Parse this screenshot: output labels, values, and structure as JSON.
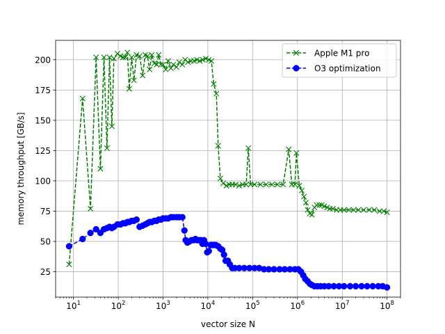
{
  "chart_data": {
    "type": "line",
    "xscale": "log",
    "xlim": [
      4,
      200000000
    ],
    "ylim": [
      4,
      216
    ],
    "grid": true,
    "legend_position": "top-right",
    "xlabel": "vector size N",
    "ylabel": "memory throughput [GB/s]",
    "x_ticks": [
      {
        "value": 10,
        "base": "10",
        "exp": "1"
      },
      {
        "value": 100,
        "base": "10",
        "exp": "2"
      },
      {
        "value": 1000,
        "base": "10",
        "exp": "3"
      },
      {
        "value": 10000,
        "base": "10",
        "exp": "4"
      },
      {
        "value": 100000,
        "base": "10",
        "exp": "5"
      },
      {
        "value": 1000000,
        "base": "10",
        "exp": "6"
      },
      {
        "value": 10000000,
        "base": "10",
        "exp": "7"
      },
      {
        "value": 100000000,
        "base": "10",
        "exp": "8"
      }
    ],
    "y_ticks": [
      {
        "value": 25,
        "label": "25"
      },
      {
        "value": 50,
        "label": "50"
      },
      {
        "value": 75,
        "label": "75"
      },
      {
        "value": 100,
        "label": "100"
      },
      {
        "value": 125,
        "label": "125"
      },
      {
        "value": 150,
        "label": "150"
      },
      {
        "value": 175,
        "label": "175"
      },
      {
        "value": 200,
        "label": "200"
      }
    ],
    "series": [
      {
        "name": "Apple M1 pro",
        "color": "#008000",
        "marker": "x",
        "line_style": "dashed",
        "points": [
          [
            8,
            31
          ],
          [
            16,
            168
          ],
          [
            24,
            77
          ],
          [
            32,
            202
          ],
          [
            40,
            110
          ],
          [
            48,
            202
          ],
          [
            56,
            127
          ],
          [
            64,
            202
          ],
          [
            72,
            145
          ],
          [
            80,
            201
          ],
          [
            96,
            205
          ],
          [
            112,
            203
          ],
          [
            128,
            202
          ],
          [
            144,
            202
          ],
          [
            160,
            206
          ],
          [
            176,
            176
          ],
          [
            200,
            202
          ],
          [
            224,
            183
          ],
          [
            256,
            204
          ],
          [
            300,
            203
          ],
          [
            350,
            187
          ],
          [
            400,
            204
          ],
          [
            450,
            203
          ],
          [
            500,
            192
          ],
          [
            560,
            204
          ],
          [
            640,
            197
          ],
          [
            720,
            196
          ],
          [
            800,
            204
          ],
          [
            900,
            196
          ],
          [
            1000,
            196
          ],
          [
            1150,
            192
          ],
          [
            1300,
            199
          ],
          [
            1500,
            193
          ],
          [
            1700,
            196
          ],
          [
            2000,
            194
          ],
          [
            2300,
            198
          ],
          [
            2700,
            196
          ],
          [
            3100,
            200
          ],
          [
            3600,
            198
          ],
          [
            4200,
            199
          ],
          [
            4900,
            199
          ],
          [
            5700,
            200
          ],
          [
            6600,
            199
          ],
          [
            7700,
            200
          ],
          [
            9000,
            201
          ],
          [
            10500,
            200
          ],
          [
            12000,
            199
          ],
          [
            13500,
            180
          ],
          [
            15500,
            172
          ],
          [
            17000,
            129
          ],
          [
            19000,
            102
          ],
          [
            22000,
            98
          ],
          [
            26000,
            96
          ],
          [
            30000,
            97
          ],
          [
            35000,
            97
          ],
          [
            42000,
            97
          ],
          [
            50000,
            96
          ],
          [
            60000,
            97
          ],
          [
            72000,
            97
          ],
          [
            80000,
            127
          ],
          [
            90000,
            97
          ],
          [
            110000,
            97
          ],
          [
            150000,
            97
          ],
          [
            200000,
            97
          ],
          [
            270000,
            97
          ],
          [
            360000,
            97
          ],
          [
            480000,
            97
          ],
          [
            640000,
            126
          ],
          [
            750000,
            97
          ],
          [
            880000,
            97
          ],
          [
            950000,
            123
          ],
          [
            1100000,
            96
          ],
          [
            1250000,
            92
          ],
          [
            1400000,
            87
          ],
          [
            1550000,
            82
          ],
          [
            1700000,
            76
          ],
          [
            1900000,
            73
          ],
          [
            2100000,
            72
          ],
          [
            2400000,
            78
          ],
          [
            2700000,
            80
          ],
          [
            3100000,
            80
          ],
          [
            3500000,
            80
          ],
          [
            4000000,
            79
          ],
          [
            4600000,
            78
          ],
          [
            5300000,
            77
          ],
          [
            6200000,
            77
          ],
          [
            7500000,
            76
          ],
          [
            9000000,
            76
          ],
          [
            11000000,
            76
          ],
          [
            14000000,
            76
          ],
          [
            18000000,
            76
          ],
          [
            23000000,
            76
          ],
          [
            30000000,
            76
          ],
          [
            40000000,
            76
          ],
          [
            52000000,
            76
          ],
          [
            68000000,
            75
          ],
          [
            85000000,
            75
          ],
          [
            100000000,
            74
          ]
        ]
      },
      {
        "name": "O3 optimization",
        "color": "#0000ff",
        "marker": "o",
        "line_style": "dashed",
        "points": [
          [
            8,
            46
          ],
          [
            16,
            52
          ],
          [
            24,
            57
          ],
          [
            32,
            60
          ],
          [
            40,
            57
          ],
          [
            48,
            60
          ],
          [
            56,
            61
          ],
          [
            64,
            62
          ],
          [
            72,
            61
          ],
          [
            80,
            62
          ],
          [
            96,
            64
          ],
          [
            112,
            64
          ],
          [
            128,
            65
          ],
          [
            144,
            65
          ],
          [
            160,
            66
          ],
          [
            176,
            66
          ],
          [
            200,
            67
          ],
          [
            224,
            67
          ],
          [
            256,
            68
          ],
          [
            300,
            62
          ],
          [
            350,
            63
          ],
          [
            400,
            64
          ],
          [
            450,
            65
          ],
          [
            500,
            66
          ],
          [
            560,
            66
          ],
          [
            640,
            67
          ],
          [
            720,
            67
          ],
          [
            800,
            68
          ],
          [
            900,
            68
          ],
          [
            1000,
            69
          ],
          [
            1150,
            69
          ],
          [
            1300,
            69
          ],
          [
            1500,
            70
          ],
          [
            1700,
            70
          ],
          [
            2000,
            70
          ],
          [
            2300,
            70
          ],
          [
            2700,
            70
          ],
          [
            3000,
            59
          ],
          [
            3200,
            51
          ],
          [
            3500,
            49
          ],
          [
            3900,
            50
          ],
          [
            4300,
            51
          ],
          [
            4800,
            51
          ],
          [
            5300,
            52
          ],
          [
            5800,
            51
          ],
          [
            6400,
            51
          ],
          [
            7000,
            51
          ],
          [
            7600,
            48
          ],
          [
            8200,
            51
          ],
          [
            8900,
            48
          ],
          [
            9700,
            41
          ],
          [
            10500,
            42
          ],
          [
            11500,
            47
          ],
          [
            12500,
            47
          ],
          [
            13500,
            47
          ],
          [
            15000,
            47
          ],
          [
            17000,
            46
          ],
          [
            19000,
            44
          ],
          [
            21000,
            43
          ],
          [
            23000,
            39
          ],
          [
            25000,
            34
          ],
          [
            28000,
            34
          ],
          [
            31000,
            31
          ],
          [
            35000,
            28
          ],
          [
            40000,
            28
          ],
          [
            50000,
            28
          ],
          [
            65000,
            28
          ],
          [
            85000,
            28
          ],
          [
            110000,
            28
          ],
          [
            140000,
            28
          ],
          [
            180000,
            27
          ],
          [
            230000,
            27
          ],
          [
            300000,
            27
          ],
          [
            400000,
            27
          ],
          [
            520000,
            27
          ],
          [
            680000,
            27
          ],
          [
            880000,
            27
          ],
          [
            1050000,
            27
          ],
          [
            1200000,
            25
          ],
          [
            1350000,
            22
          ],
          [
            1500000,
            19
          ],
          [
            1700000,
            17
          ],
          [
            1900000,
            15
          ],
          [
            2100000,
            14
          ],
          [
            2400000,
            13
          ],
          [
            2800000,
            13
          ],
          [
            3300000,
            13
          ],
          [
            4000000,
            13
          ],
          [
            5000000,
            13
          ],
          [
            6500000,
            13
          ],
          [
            8500000,
            13
          ],
          [
            11000000,
            13
          ],
          [
            15000000,
            13
          ],
          [
            20000000,
            13
          ],
          [
            27000000,
            13
          ],
          [
            36000000,
            13
          ],
          [
            48000000,
            13
          ],
          [
            64000000,
            13
          ],
          [
            80000000,
            13
          ],
          [
            100000000,
            12
          ]
        ]
      }
    ]
  }
}
